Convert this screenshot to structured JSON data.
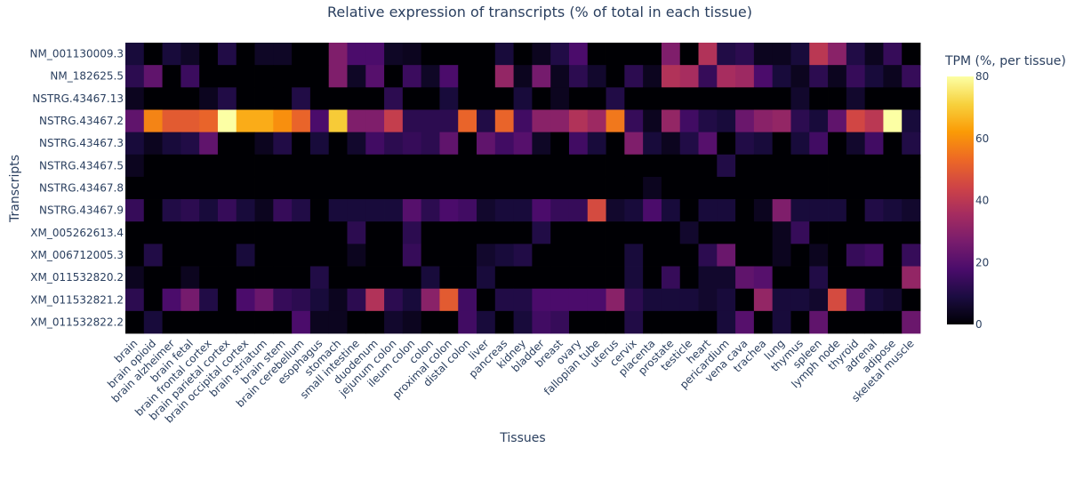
{
  "chart_data": {
    "type": "heatmap",
    "title": "Relative expression of transcripts (% of total in each tissue)",
    "xlabel": "Tissues",
    "ylabel": "Transcripts",
    "colorbar_title": "TPM (%, per tissue)",
    "colorbar_ticks": [
      0,
      20,
      40,
      60,
      80
    ],
    "zlim": [
      0,
      80
    ],
    "colorscale": "inferno",
    "x": [
      "brain",
      "brain opioid",
      "brain alzheimer",
      "brain fetal",
      "brain frontal cortex",
      "brain parietal cortex",
      "brain occipital cortex",
      "brain striatum",
      "brain stem",
      "brain cerebellum",
      "esophagus",
      "stomach",
      "small intestine",
      "duodenum",
      "jejunum colon",
      "ileum colon",
      "colon",
      "proximal colon",
      "distal colon",
      "liver",
      "pancreas",
      "kidney",
      "bladder",
      "breast",
      "ovary",
      "fallopian tube",
      "uterus",
      "cervix",
      "placenta",
      "prostate",
      "testicle",
      "heart",
      "pericardium",
      "vena cava",
      "trachea",
      "lung",
      "thymus",
      "spleen",
      "lymph node",
      "thyroid",
      "adrenal",
      "adipose",
      "skeletal muscle"
    ],
    "y": [
      "NM_001130009.3",
      "NM_182625.5",
      "NSTRG.43467.13",
      "NSTRG.43467.2",
      "NSTRG.43467.3",
      "NSTRG.43467.5",
      "NSTRG.43467.8",
      "NSTRG.43467.9",
      "XM_005262613.4",
      "XM_006712005.3",
      "XM_011532820.2",
      "XM_011532821.2",
      "XM_011532822.2"
    ],
    "z": [
      [
        8,
        0,
        8,
        5,
        0,
        10,
        0,
        5,
        5,
        0,
        0,
        28,
        18,
        18,
        5,
        4,
        0,
        0,
        0,
        0,
        8,
        0,
        4,
        10,
        18,
        0,
        0,
        0,
        0,
        28,
        0,
        38,
        10,
        12,
        4,
        4,
        8,
        40,
        30,
        10,
        4,
        14,
        0
      ],
      [
        12,
        22,
        0,
        15,
        0,
        0,
        0,
        0,
        0,
        0,
        0,
        28,
        5,
        20,
        0,
        15,
        5,
        18,
        0,
        0,
        32,
        4,
        26,
        4,
        12,
        6,
        0,
        12,
        4,
        38,
        36,
        14,
        36,
        34,
        18,
        8,
        4,
        12,
        4,
        14,
        8,
        4,
        14
      ],
      [
        4,
        0,
        0,
        0,
        4,
        10,
        0,
        0,
        0,
        10,
        0,
        0,
        0,
        0,
        12,
        0,
        0,
        8,
        0,
        0,
        0,
        8,
        0,
        4,
        0,
        0,
        10,
        0,
        0,
        0,
        0,
        0,
        0,
        0,
        0,
        0,
        6,
        0,
        0,
        6,
        0,
        0,
        0
      ],
      [
        22,
        58,
        50,
        50,
        52,
        80,
        65,
        65,
        60,
        52,
        18,
        70,
        28,
        28,
        42,
        12,
        12,
        12,
        52,
        10,
        52,
        16,
        30,
        30,
        38,
        34,
        56,
        14,
        4,
        32,
        16,
        10,
        8,
        24,
        30,
        32,
        12,
        8,
        22,
        45,
        40,
        80,
        8
      ],
      [
        8,
        4,
        8,
        10,
        22,
        0,
        0,
        4,
        10,
        0,
        8,
        0,
        6,
        16,
        12,
        14,
        12,
        22,
        0,
        22,
        16,
        20,
        5,
        0,
        16,
        8,
        0,
        28,
        8,
        4,
        10,
        20,
        0,
        10,
        8,
        0,
        8,
        16,
        0,
        6,
        16,
        0,
        10
      ],
      [
        4,
        0,
        0,
        0,
        0,
        0,
        0,
        0,
        0,
        0,
        0,
        0,
        0,
        0,
        0,
        0,
        0,
        0,
        0,
        0,
        0,
        0,
        0,
        0,
        0,
        0,
        0,
        0,
        0,
        0,
        0,
        0,
        10,
        0,
        0,
        0,
        0,
        0,
        0,
        0,
        0,
        0,
        0
      ],
      [
        0,
        0,
        0,
        0,
        0,
        0,
        0,
        0,
        0,
        0,
        0,
        0,
        0,
        0,
        0,
        0,
        0,
        0,
        0,
        0,
        0,
        0,
        0,
        0,
        0,
        0,
        0,
        0,
        4,
        0,
        0,
        0,
        0,
        0,
        0,
        0,
        0,
        0,
        0,
        0,
        0,
        0,
        0
      ],
      [
        14,
        0,
        10,
        12,
        8,
        14,
        8,
        4,
        14,
        10,
        0,
        8,
        8,
        8,
        8,
        20,
        12,
        18,
        16,
        6,
        8,
        8,
        18,
        14,
        14,
        46,
        6,
        8,
        18,
        8,
        0,
        8,
        8,
        0,
        4,
        28,
        8,
        8,
        8,
        0,
        10,
        8,
        6
      ],
      [
        0,
        0,
        0,
        0,
        0,
        0,
        0,
        0,
        0,
        0,
        0,
        0,
        12,
        0,
        0,
        12,
        0,
        0,
        0,
        0,
        0,
        0,
        10,
        0,
        0,
        0,
        0,
        0,
        0,
        0,
        6,
        0,
        0,
        0,
        0,
        4,
        14,
        0,
        0,
        0,
        0,
        0,
        0
      ],
      [
        0,
        10,
        0,
        0,
        0,
        0,
        8,
        0,
        0,
        0,
        0,
        0,
        4,
        0,
        0,
        14,
        0,
        0,
        0,
        6,
        8,
        10,
        0,
        0,
        0,
        0,
        0,
        8,
        0,
        0,
        0,
        12,
        24,
        0,
        0,
        4,
        0,
        4,
        0,
        14,
        16,
        0,
        14
      ],
      [
        4,
        0,
        0,
        4,
        0,
        0,
        0,
        0,
        0,
        0,
        10,
        0,
        0,
        0,
        0,
        0,
        8,
        0,
        0,
        8,
        0,
        0,
        0,
        0,
        0,
        0,
        0,
        8,
        0,
        14,
        0,
        6,
        6,
        22,
        20,
        0,
        0,
        10,
        0,
        0,
        0,
        0,
        32
      ],
      [
        12,
        0,
        18,
        26,
        10,
        0,
        18,
        24,
        14,
        12,
        8,
        4,
        12,
        38,
        12,
        8,
        30,
        50,
        16,
        0,
        10,
        10,
        18,
        18,
        18,
        18,
        30,
        12,
        8,
        8,
        8,
        6,
        8,
        0,
        32,
        8,
        8,
        6,
        46,
        22,
        8,
        6,
        0
      ],
      [
        0,
        8,
        0,
        0,
        0,
        0,
        0,
        0,
        0,
        18,
        4,
        4,
        0,
        0,
        6,
        4,
        0,
        0,
        16,
        8,
        0,
        8,
        16,
        14,
        0,
        0,
        0,
        10,
        0,
        0,
        0,
        0,
        8,
        20,
        0,
        8,
        0,
        22,
        0,
        0,
        0,
        0,
        24
      ]
    ]
  }
}
